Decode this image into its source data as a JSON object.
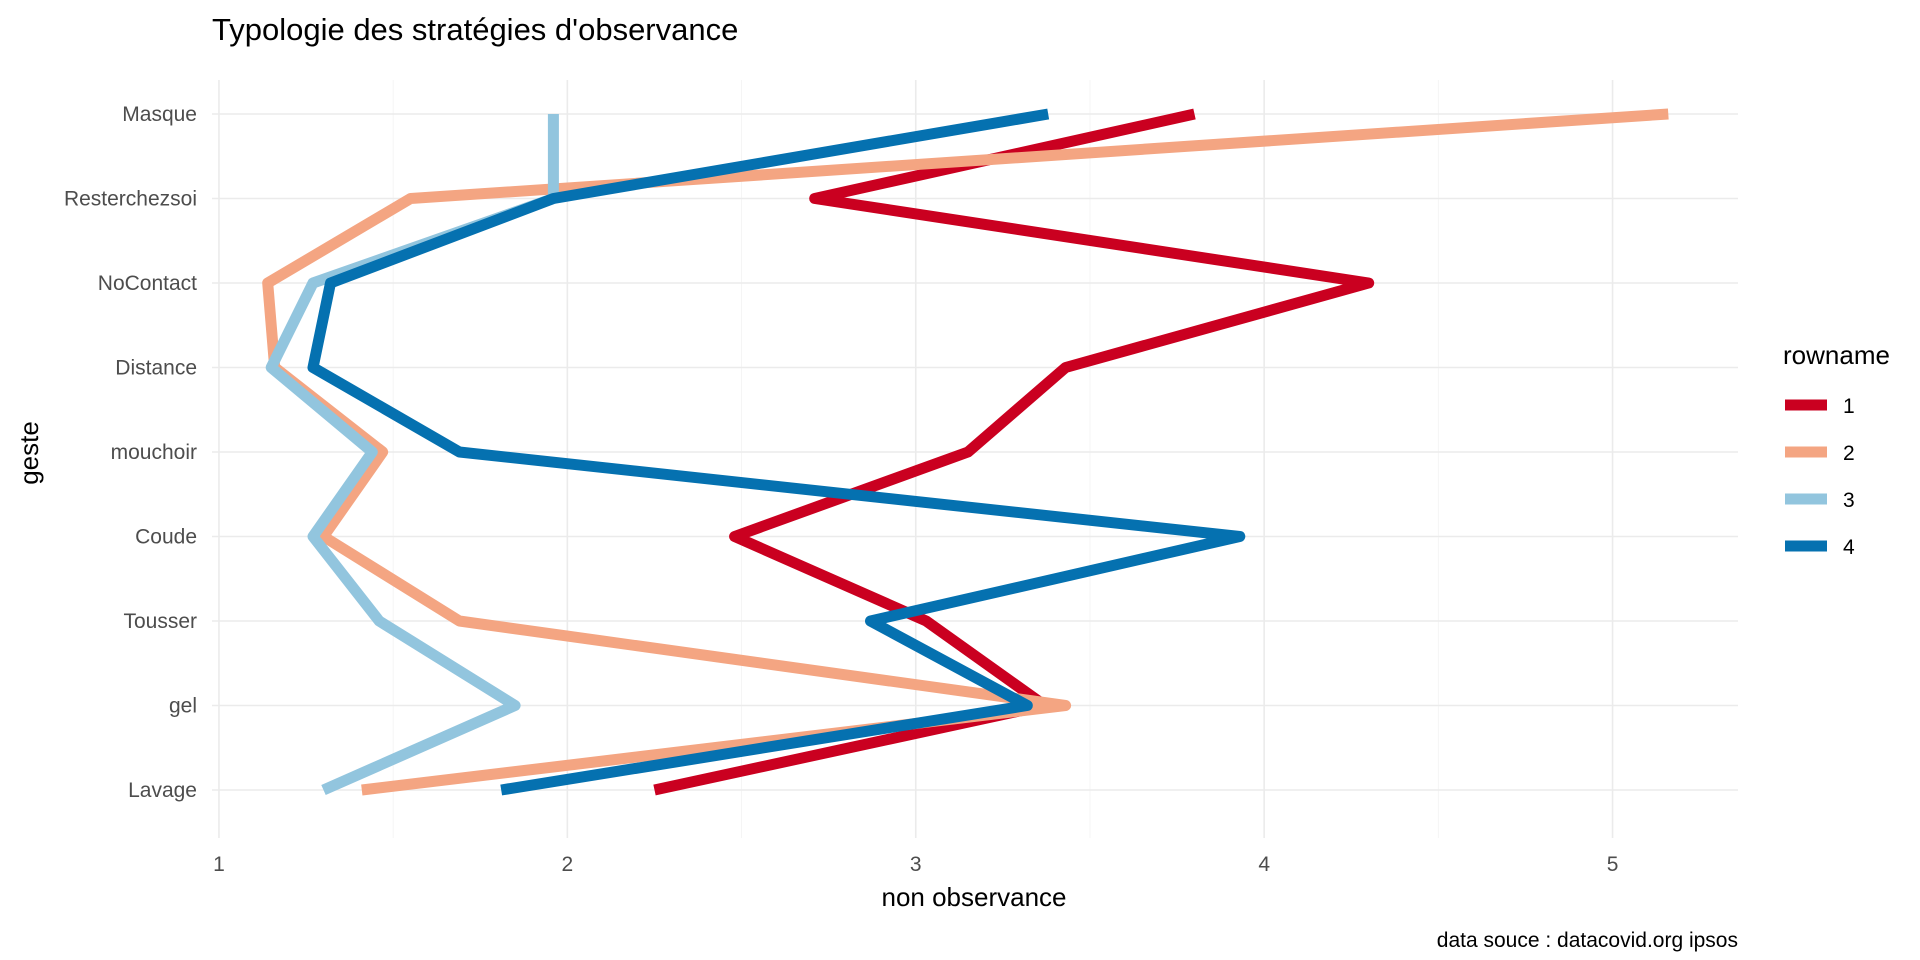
{
  "chart_data": {
    "type": "line",
    "title": "Typologie des stratégies d'observance",
    "xlabel": "non observance",
    "ylabel": "geste",
    "caption": "data souce : datacovid.org ipsos",
    "legend_title": "rowname",
    "legend_position": "right",
    "grid": true,
    "xlim": [
      0.98,
      5.36
    ],
    "x_ticks": [
      "1",
      "2",
      "3",
      "4",
      "5"
    ],
    "x_tick_values": [
      1,
      2,
      3,
      4,
      5
    ],
    "categories": [
      "Lavage",
      "gel",
      "Tousser",
      "Coude",
      "mouchoir",
      "Distance",
      "NoContact",
      "Resterchezsoi",
      "Masque"
    ],
    "series": [
      {
        "name": "1",
        "color": "#ca0020",
        "values": [
          2.25,
          3.37,
          3.03,
          2.48,
          3.15,
          3.43,
          4.3,
          2.71,
          3.8
        ]
      },
      {
        "name": "2",
        "color": "#f4a582",
        "values": [
          1.41,
          3.43,
          1.69,
          1.3,
          1.47,
          1.16,
          1.14,
          1.55,
          5.16
        ]
      },
      {
        "name": "3",
        "color": "#92c5de",
        "values": [
          1.3,
          1.85,
          1.46,
          1.27,
          1.44,
          1.15,
          1.27,
          1.96,
          1.96
        ]
      },
      {
        "name": "4",
        "color": "#0571b0",
        "values": [
          1.81,
          3.32,
          2.87,
          3.93,
          1.69,
          1.27,
          1.32,
          1.96,
          3.38
        ]
      }
    ]
  }
}
